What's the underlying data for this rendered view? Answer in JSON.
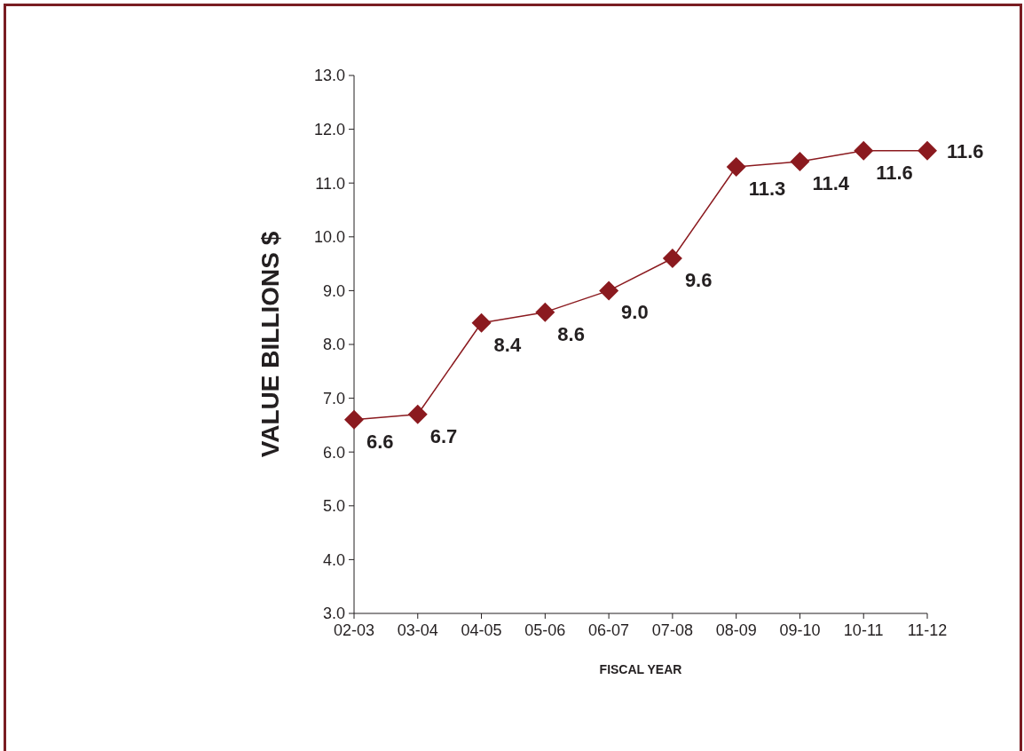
{
  "chart_data": {
    "type": "line",
    "xlabel": "FISCAL YEAR",
    "ylabel": "VALUE BILLIONS  $",
    "categories": [
      "02-03",
      "03-04",
      "04-05",
      "05-06",
      "06-07",
      "07-08",
      "08-09",
      "09-10",
      "10-11",
      "11-12"
    ],
    "values": [
      6.6,
      6.7,
      8.4,
      8.6,
      9.0,
      9.6,
      11.3,
      11.4,
      11.6,
      11.6
    ],
    "value_labels": [
      "6.6",
      "6.7",
      "8.4",
      "8.6",
      "9.0",
      "9.6",
      "11.3",
      "11.4",
      "11.6",
      "11.6"
    ],
    "color": "#8b1a1f",
    "marker": "diamond",
    "line_style": "solid",
    "grid": false,
    "legend": false,
    "ylim": [
      3,
      13
    ],
    "yticks": [
      {
        "value": 3,
        "label": "3.0"
      },
      {
        "value": 4,
        "label": "4.0"
      },
      {
        "value": 5,
        "label": "5.0"
      },
      {
        "value": 6,
        "label": "6.0"
      },
      {
        "value": 7,
        "label": "7.0"
      },
      {
        "value": 8,
        "label": "8.0"
      },
      {
        "value": 9,
        "label": "9.0"
      },
      {
        "value": 10,
        "label": "10.0"
      },
      {
        "value": 11,
        "label": "11.0"
      },
      {
        "value": 12,
        "label": "12.0"
      },
      {
        "value": 13,
        "label": "13.0"
      }
    ]
  }
}
